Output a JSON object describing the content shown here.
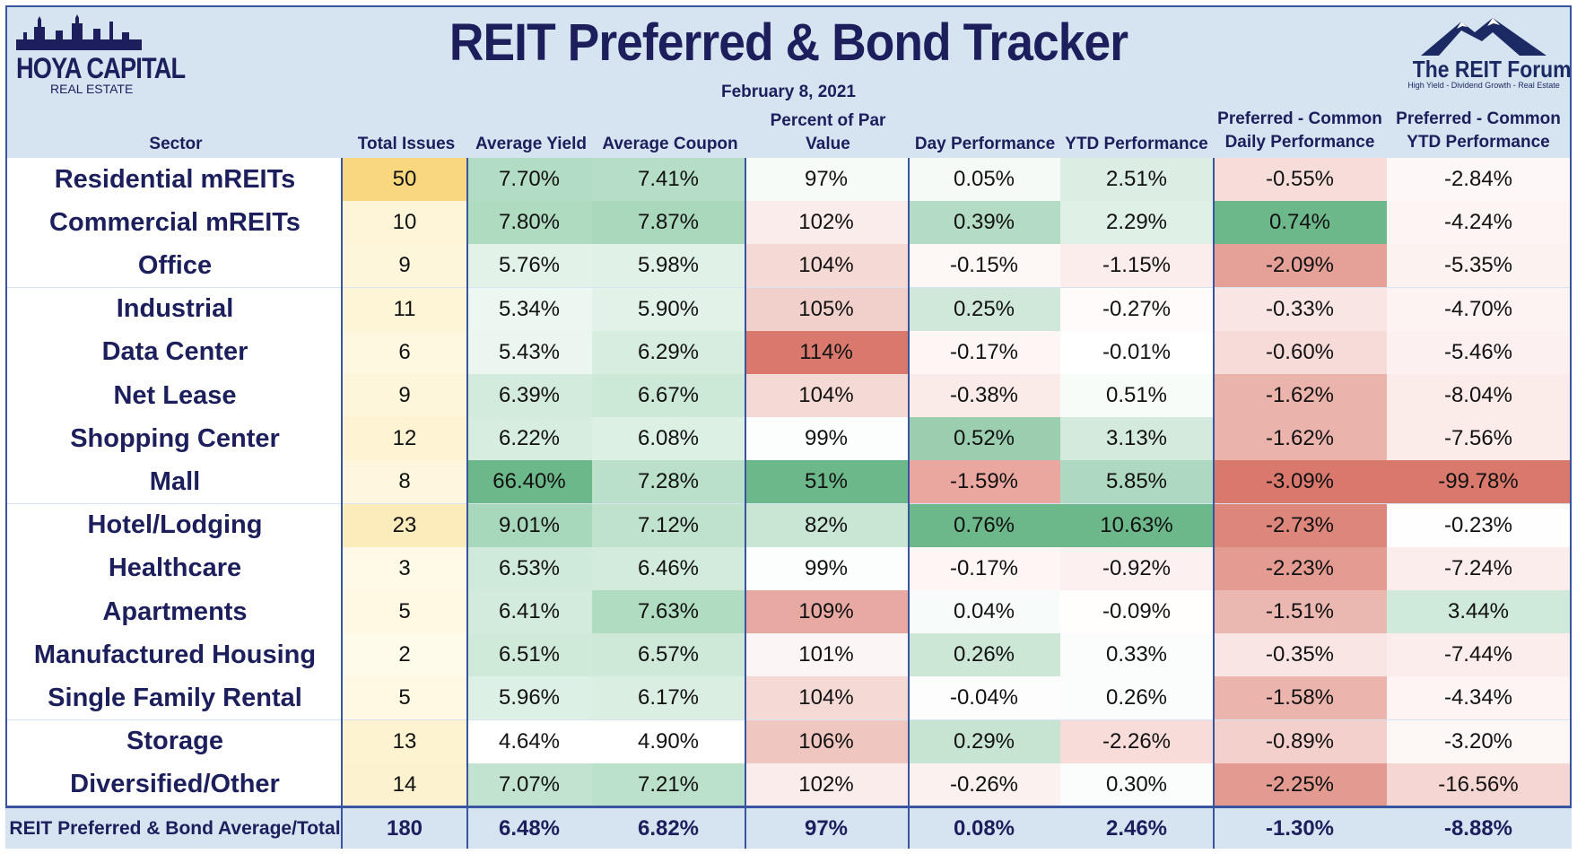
{
  "title": "REIT Preferred & Bond Tracker",
  "date": "February 8, 2021",
  "logo_left": {
    "line1": "HOYA CAPITAL",
    "line2": "REAL ESTATE"
  },
  "logo_right": {
    "line1": "The REIT Forum",
    "line2": "High Yield - Dividend Growth - Real Estate"
  },
  "headers": {
    "sector": "Sector",
    "total_issues": "Total Issues",
    "avg_yield": "Average Yield",
    "avg_coupon": "Average Coupon",
    "par": "Percent of Par Value",
    "day": "Day Performance",
    "ytd": "YTD Performance",
    "pc_daily_l1": "Preferred - Common",
    "pc_daily_l2": "Daily Performance",
    "pc_ytd_l1": "Preferred - Common",
    "pc_ytd_l2": "YTD Performance"
  },
  "colors": {
    "green_dark": "#6cb88a",
    "green_light": "#e6f4ec",
    "red_dark": "#d9796d",
    "red_light": "#fbeceb",
    "yellow_dark": "#f8d77e",
    "yellow_light": "#fffbea",
    "header_bg": "#d6e3f1",
    "border": "#3a55a0",
    "text_dark": "#1c1f5c"
  },
  "chart_data": {
    "type": "table",
    "title": "REIT Preferred & Bond Tracker",
    "columns": [
      "Sector",
      "Total Issues",
      "Average Yield",
      "Average Coupon",
      "Percent of Par Value",
      "Day Performance",
      "YTD Performance",
      "Preferred - Common Daily Performance",
      "Preferred - Common YTD Performance"
    ],
    "rows": [
      {
        "sector": "Residential mREITs",
        "issues": "50",
        "yield": "7.70%",
        "coupon": "7.41%",
        "par": "97%",
        "day": "0.05%",
        "ytd": "2.51%",
        "pcd": "-0.55%",
        "pcy": "-2.84%"
      },
      {
        "sector": "Commercial mREITs",
        "issues": "10",
        "yield": "7.80%",
        "coupon": "7.87%",
        "par": "102%",
        "day": "0.39%",
        "ytd": "2.29%",
        "pcd": "0.74%",
        "pcy": "-4.24%"
      },
      {
        "sector": "Office",
        "issues": "9",
        "yield": "5.76%",
        "coupon": "5.98%",
        "par": "104%",
        "day": "-0.15%",
        "ytd": "-1.15%",
        "pcd": "-2.09%",
        "pcy": "-5.35%"
      },
      {
        "sector": "Industrial",
        "issues": "11",
        "yield": "5.34%",
        "coupon": "5.90%",
        "par": "105%",
        "day": "0.25%",
        "ytd": "-0.27%",
        "pcd": "-0.33%",
        "pcy": "-4.70%"
      },
      {
        "sector": "Data Center",
        "issues": "6",
        "yield": "5.43%",
        "coupon": "6.29%",
        "par": "114%",
        "day": "-0.17%",
        "ytd": "-0.01%",
        "pcd": "-0.60%",
        "pcy": "-5.46%"
      },
      {
        "sector": "Net Lease",
        "issues": "9",
        "yield": "6.39%",
        "coupon": "6.67%",
        "par": "104%",
        "day": "-0.38%",
        "ytd": "0.51%",
        "pcd": "-1.62%",
        "pcy": "-8.04%"
      },
      {
        "sector": "Shopping Center",
        "issues": "12",
        "yield": "6.22%",
        "coupon": "6.08%",
        "par": "99%",
        "day": "0.52%",
        "ytd": "3.13%",
        "pcd": "-1.62%",
        "pcy": "-7.56%"
      },
      {
        "sector": "Mall",
        "issues": "8",
        "yield": "66.40%",
        "coupon": "7.28%",
        "par": "51%",
        "day": "-1.59%",
        "ytd": "5.85%",
        "pcd": "-3.09%",
        "pcy": "-99.78%"
      },
      {
        "sector": "Hotel/Lodging",
        "issues": "23",
        "yield": "9.01%",
        "coupon": "7.12%",
        "par": "82%",
        "day": "0.76%",
        "ytd": "10.63%",
        "pcd": "-2.73%",
        "pcy": "-0.23%"
      },
      {
        "sector": "Healthcare",
        "issues": "3",
        "yield": "6.53%",
        "coupon": "6.46%",
        "par": "99%",
        "day": "-0.17%",
        "ytd": "-0.92%",
        "pcd": "-2.23%",
        "pcy": "-7.24%"
      },
      {
        "sector": "Apartments",
        "issues": "5",
        "yield": "6.41%",
        "coupon": "7.63%",
        "par": "109%",
        "day": "0.04%",
        "ytd": "-0.09%",
        "pcd": "-1.51%",
        "pcy": "3.44%"
      },
      {
        "sector": "Manufactured Housing",
        "issues": "2",
        "yield": "6.51%",
        "coupon": "6.57%",
        "par": "101%",
        "day": "0.26%",
        "ytd": "0.33%",
        "pcd": "-0.35%",
        "pcy": "-7.44%"
      },
      {
        "sector": "Single Family Rental",
        "issues": "5",
        "yield": "5.96%",
        "coupon": "6.17%",
        "par": "104%",
        "day": "-0.04%",
        "ytd": "0.26%",
        "pcd": "-1.58%",
        "pcy": "-4.34%"
      },
      {
        "sector": "Storage",
        "issues": "13",
        "yield": "4.64%",
        "coupon": "4.90%",
        "par": "106%",
        "day": "0.29%",
        "ytd": "-2.26%",
        "pcd": "-0.89%",
        "pcy": "-3.20%"
      },
      {
        "sector": "Diversified/Other",
        "issues": "14",
        "yield": "7.07%",
        "coupon": "7.21%",
        "par": "102%",
        "day": "-0.26%",
        "ytd": "0.30%",
        "pcd": "-2.25%",
        "pcy": "-16.56%"
      }
    ],
    "total": {
      "sector": "REIT Preferred & Bond Average/Total",
      "issues": "180",
      "yield": "6.48%",
      "coupon": "6.82%",
      "par": "97%",
      "day": "0.08%",
      "ytd": "2.46%",
      "pcd": "-1.30%",
      "pcy": "-8.88%"
    }
  }
}
